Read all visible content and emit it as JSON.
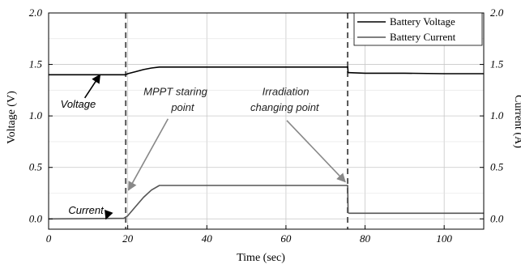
{
  "chart_data": {
    "type": "line",
    "xlabel": "Time (sec)",
    "ylabel_left": "Voltage (V)",
    "ylabel_right": "Current (A)",
    "xlim": [
      0,
      110
    ],
    "ylim_left": [
      -0.1,
      2.0
    ],
    "ylim_right": [
      -0.1,
      2.0
    ],
    "x_ticks": [
      0,
      20,
      40,
      60,
      80,
      100
    ],
    "x_tick_labels": [
      "0",
      "20",
      "40",
      "60",
      "80",
      "100"
    ],
    "y_ticks": [
      0.0,
      0.5,
      1.0,
      1.5,
      2.0
    ],
    "y_tick_labels": [
      "0.0",
      "0.5",
      "1.0",
      "1.5",
      "2.0"
    ],
    "grid": true,
    "legend_position": "top-right",
    "series": [
      {
        "name": "Battery Voltage",
        "color": "#000000",
        "axis": "left",
        "x": [
          0,
          19.5,
          20,
          22,
          24,
          26,
          28,
          30,
          40,
          60,
          75.6,
          75.7,
          76,
          80,
          90,
          100,
          110
        ],
        "y": [
          1.4,
          1.4,
          1.41,
          1.43,
          1.45,
          1.465,
          1.475,
          1.475,
          1.475,
          1.475,
          1.475,
          1.42,
          1.42,
          1.415,
          1.415,
          1.41,
          1.41
        ]
      },
      {
        "name": "Battery Current",
        "color": "#555555",
        "axis": "right",
        "x": [
          0,
          19,
          20,
          22,
          24,
          26,
          28,
          30,
          40,
          60,
          75.6,
          75.7,
          76,
          80,
          90,
          100,
          110
        ],
        "y": [
          0.0,
          0.005,
          0.03,
          0.12,
          0.21,
          0.28,
          0.325,
          0.325,
          0.325,
          0.325,
          0.325,
          0.06,
          0.055,
          0.055,
          0.055,
          0.055,
          0.055
        ]
      }
    ],
    "vlines": [
      19.5,
      75.6
    ],
    "annotations": [
      {
        "text": "Voltage",
        "tx": 3,
        "ty": 1.08,
        "ax": 13,
        "ay": 1.4,
        "style": "dark"
      },
      {
        "text": "Current",
        "tx": 5,
        "ty": 0.05,
        "ax": 14.5,
        "ay": 0.0,
        "style": "dark"
      },
      {
        "text": "MPPT  staring",
        "tx": 24,
        "ty": 1.2,
        "style": "grey"
      },
      {
        "text": "point",
        "tx": 31,
        "ty": 1.05,
        "ax": 20.2,
        "ay": 0.28,
        "style": "grey"
      },
      {
        "text": "Irradiation",
        "tx": 54,
        "ty": 1.2,
        "style": "grey"
      },
      {
        "text": "changing point",
        "tx": 51,
        "ty": 1.05,
        "ax": 75,
        "ay": 0.36,
        "style": "grey"
      }
    ]
  }
}
